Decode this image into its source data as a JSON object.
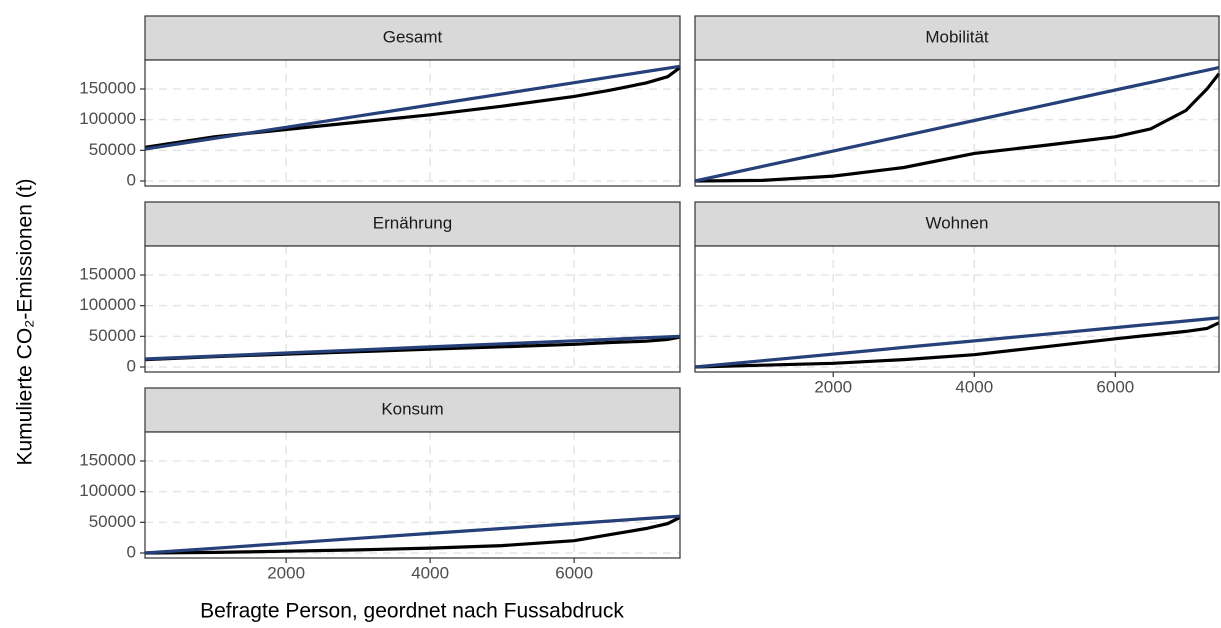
{
  "chart_data": {
    "type": "line",
    "xlabel": "Befragte Person, geordnet nach Fussabdruck",
    "ylabel": "Kumulierte CO₂-Emissionen (t)",
    "xlim": [
      40,
      7470
    ],
    "ylim": [
      -8150,
      197300
    ],
    "xticks": [
      2000,
      4000,
      6000
    ],
    "yticks": [
      0,
      50000,
      100000,
      150000
    ],
    "grid": true,
    "x": [
      40,
      1000,
      2000,
      3000,
      4000,
      5000,
      6000,
      6500,
      7000,
      7300,
      7470
    ],
    "panels": [
      {
        "title": "Gesamt",
        "series": [
          {
            "color": "#000000",
            "values": [
              55000,
              72000,
              84000,
              96000,
              108000,
              122000,
              138000,
              148000,
              160000,
              170000,
              185000
            ]
          },
          {
            "color": "#26407a",
            "values": [
              52000,
              69400,
              87600,
              105800,
              124000,
              142100,
              160300,
              169400,
              178500,
              183900,
              187000
            ]
          }
        ]
      },
      {
        "title": "Mobilität",
        "series": [
          {
            "color": "#000000",
            "values": [
              0,
              1000,
              8000,
              22000,
              45000,
              58000,
              72000,
              85000,
              115000,
              150000,
              175000
            ]
          },
          {
            "color": "#26407a",
            "values": [
              0,
              23900,
              48800,
              73700,
              98600,
              123500,
              148400,
              160800,
              173300,
              180700,
              185000
            ]
          }
        ]
      },
      {
        "title": "Ernährung",
        "series": [
          {
            "color": "#000000",
            "values": [
              12000,
              17000,
              21000,
              25000,
              29000,
              33000,
              37000,
              40000,
              42000,
              45000,
              49000
            ]
          },
          {
            "color": "#26407a",
            "values": [
              13000,
              17800,
              22800,
              27700,
              32700,
              37700,
              42700,
              45200,
              47700,
              49200,
              50000
            ]
          }
        ]
      },
      {
        "title": "Wohnen",
        "series": [
          {
            "color": "#000000",
            "values": [
              0,
              3000,
              6000,
              12000,
              20000,
              33000,
              46000,
              52000,
              58000,
              63000,
              72000
            ]
          },
          {
            "color": "#26407a",
            "values": [
              0,
              10300,
              21100,
              31900,
              42600,
              53400,
              64200,
              69600,
              75000,
              78200,
              80000
            ]
          }
        ]
      },
      {
        "title": "Konsum",
        "series": [
          {
            "color": "#000000",
            "values": [
              0,
              1000,
              3000,
              5000,
              8000,
              12000,
              20000,
              30000,
              40000,
              48000,
              58000
            ]
          },
          {
            "color": "#26407a",
            "values": [
              0,
              7700,
              15800,
              23900,
              32000,
              40000,
              48100,
              52200,
              56200,
              58700,
              60000
            ]
          }
        ]
      }
    ]
  }
}
